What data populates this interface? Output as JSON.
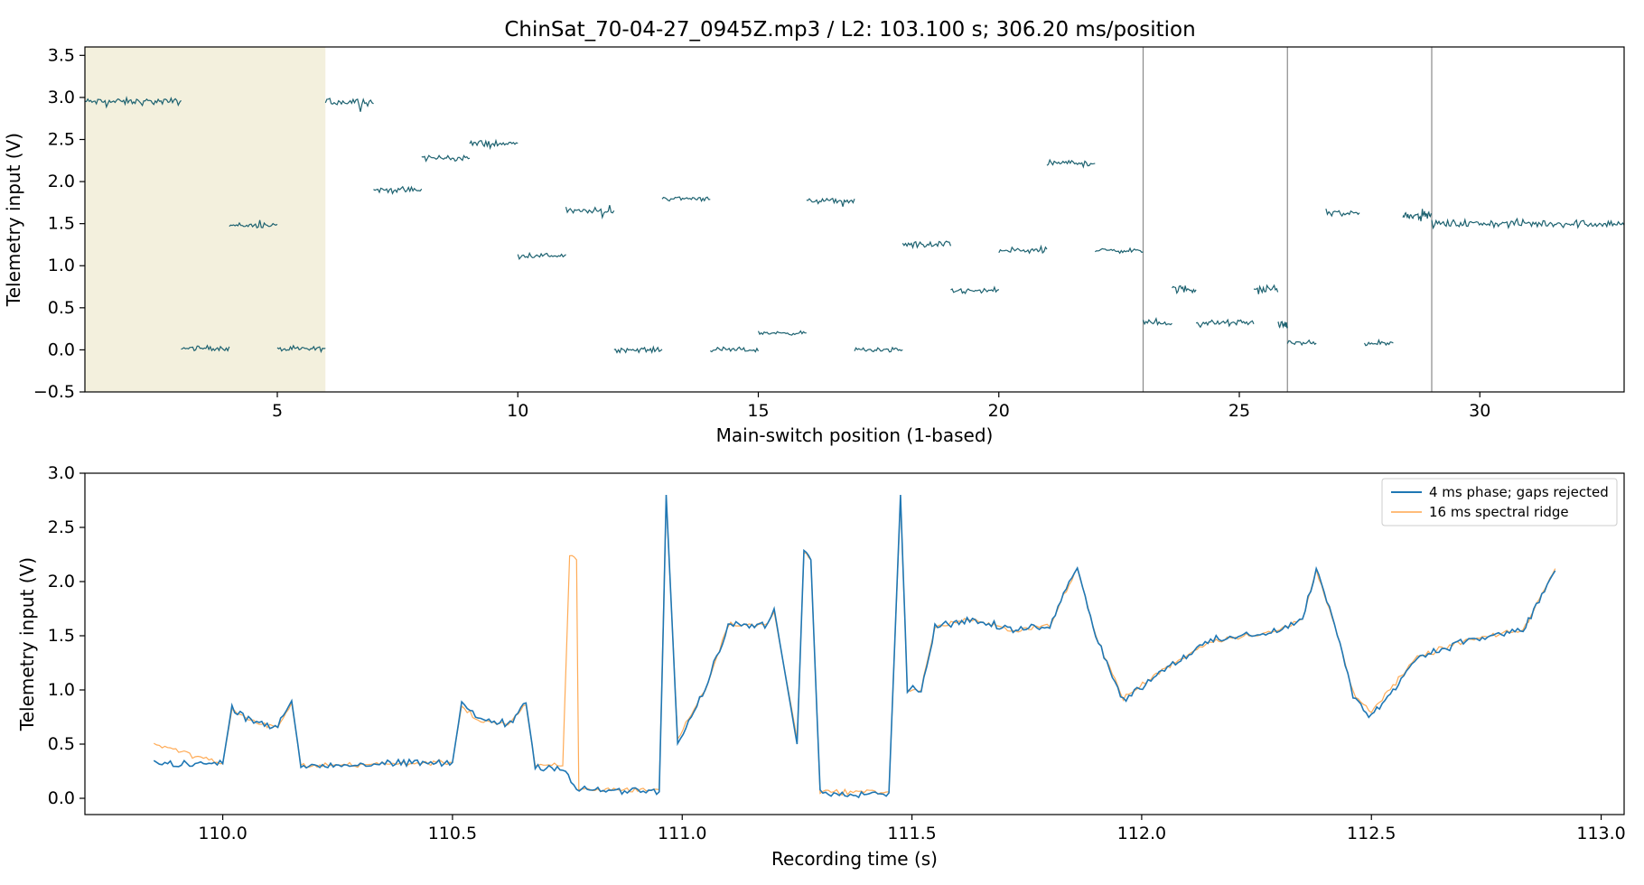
{
  "chart_data": [
    {
      "type": "line",
      "title": "ChinSat_70-04-27_0945Z.mp3 / L2: 103.100 s; 306.20 ms/position",
      "xlabel": "Main-switch position (1-based)",
      "ylabel": "Telemetry input (V)",
      "xlim": [
        1,
        33
      ],
      "ylim": [
        -0.5,
        3.6
      ],
      "xticks": [
        5,
        10,
        15,
        20,
        25,
        30
      ],
      "yticks": [
        -0.5,
        0.0,
        0.5,
        1.0,
        1.5,
        2.0,
        2.5,
        3.0,
        3.5
      ],
      "grid": false,
      "line_color": "#1d6270",
      "highlight": {
        "x0": 1,
        "x1": 6,
        "color": "#f3f0dd"
      },
      "vlines": [
        23,
        26,
        29
      ],
      "vline_color": "#8a8a8a",
      "series": [
        {
          "segments": [
            {
              "x0": 1.0,
              "x1": 3.0,
              "y": 2.95,
              "noise": 0.035
            },
            {
              "x0": 3.0,
              "x1": 4.0,
              "y": 0.02,
              "noise": 0.025
            },
            {
              "x0": 4.0,
              "x1": 5.0,
              "y": 1.48,
              "noise": 0.025
            },
            {
              "x0": 5.0,
              "x1": 6.0,
              "y": 0.01,
              "noise": 0.025
            },
            {
              "x0": 6.0,
              "x1": 7.0,
              "y": 2.95,
              "noise": 0.04
            },
            {
              "x0": 7.0,
              "x1": 8.0,
              "y": 1.9,
              "noise": 0.035
            },
            {
              "x0": 8.0,
              "x1": 9.0,
              "y": 2.28,
              "noise": 0.035
            },
            {
              "x0": 9.0,
              "x1": 10.0,
              "y": 2.45,
              "noise": 0.035
            },
            {
              "x0": 10.0,
              "x1": 11.0,
              "y": 1.12,
              "noise": 0.025
            },
            {
              "x0": 11.0,
              "x1": 12.0,
              "y": 1.65,
              "noise": 0.03
            },
            {
              "x0": 12.0,
              "x1": 13.0,
              "y": 0.0,
              "noise": 0.025
            },
            {
              "x0": 13.0,
              "x1": 14.0,
              "y": 1.8,
              "noise": 0.025
            },
            {
              "x0": 14.0,
              "x1": 15.0,
              "y": 0.0,
              "noise": 0.025
            },
            {
              "x0": 15.0,
              "x1": 16.0,
              "y": 0.2,
              "noise": 0.02
            },
            {
              "x0": 16.0,
              "x1": 17.0,
              "y": 1.77,
              "noise": 0.025
            },
            {
              "x0": 17.0,
              "x1": 18.0,
              "y": 0.0,
              "noise": 0.025
            },
            {
              "x0": 18.0,
              "x1": 19.0,
              "y": 1.25,
              "noise": 0.035
            },
            {
              "x0": 19.0,
              "x1": 20.0,
              "y": 0.7,
              "noise": 0.03
            },
            {
              "x0": 20.0,
              "x1": 21.0,
              "y": 1.18,
              "noise": 0.035
            },
            {
              "x0": 21.0,
              "x1": 22.0,
              "y": 2.22,
              "noise": 0.035
            },
            {
              "x0": 22.0,
              "x1": 23.0,
              "y": 1.18,
              "noise": 0.025
            },
            {
              "x0": 23.0,
              "x1": 23.6,
              "y": 0.32,
              "noise": 0.03
            },
            {
              "x0": 23.6,
              "x1": 24.1,
              "y": 0.72,
              "noise": 0.04
            },
            {
              "x0": 24.1,
              "x1": 25.3,
              "y": 0.32,
              "noise": 0.03
            },
            {
              "x0": 25.3,
              "x1": 25.8,
              "y": 0.72,
              "noise": 0.04
            },
            {
              "x0": 25.8,
              "x1": 26.0,
              "y": 0.3,
              "noise": 0.03
            },
            {
              "x0": 26.0,
              "x1": 26.6,
              "y": 0.08,
              "noise": 0.025
            },
            {
              "x0": 26.8,
              "x1": 27.5,
              "y": 1.62,
              "noise": 0.04
            },
            {
              "x0": 27.6,
              "x1": 28.2,
              "y": 0.08,
              "noise": 0.025
            },
            {
              "x0": 28.4,
              "x1": 28.7,
              "y": 1.6,
              "noise": 0.035
            },
            {
              "x0": 28.7,
              "x1": 29.0,
              "y": 1.6,
              "noise": 0.035
            },
            {
              "x0": 29.0,
              "x1": 33.0,
              "y": 1.5,
              "noise": 0.04
            }
          ]
        }
      ]
    },
    {
      "type": "line",
      "title": "",
      "xlabel": "Recording time (s)",
      "ylabel": "Telemetry input (V)",
      "xlim": [
        109.7,
        113.05
      ],
      "ylim": [
        -0.15,
        3.0
      ],
      "xticks": [
        110.0,
        110.5,
        111.0,
        111.5,
        112.0,
        112.5,
        113.0
      ],
      "xtick_labels": [
        "110.0",
        "110.5",
        "111.0",
        "111.5",
        "112.0",
        "112.5",
        "113.0"
      ],
      "yticks": [
        0.0,
        0.5,
        1.0,
        1.5,
        2.0,
        2.5,
        3.0
      ],
      "ytick_labels": [
        "0.0",
        "0.5",
        "1.0",
        "1.5",
        "2.0",
        "2.5",
        "3.0"
      ],
      "grid": false,
      "legend_position": "top-right",
      "series": [
        {
          "name": "4 ms phase; gaps rejected",
          "color": "#1f77b4",
          "points": [
            [
              109.85,
              0.32
            ],
            [
              110.0,
              0.32
            ],
            [
              110.02,
              0.85
            ],
            [
              110.05,
              0.75
            ],
            [
              110.12,
              0.65
            ],
            [
              110.15,
              0.9
            ],
            [
              110.17,
              0.3
            ],
            [
              110.5,
              0.33
            ],
            [
              110.52,
              0.88
            ],
            [
              110.55,
              0.75
            ],
            [
              110.62,
              0.68
            ],
            [
              110.66,
              0.88
            ],
            [
              110.68,
              0.3
            ],
            [
              110.74,
              0.28
            ],
            [
              110.77,
              0.08
            ],
            [
              110.95,
              0.06
            ],
            [
              110.96,
              1.8
            ],
            [
              110.965,
              2.8
            ],
            [
              110.975,
              1.9
            ],
            [
              110.99,
              0.5
            ],
            [
              111.05,
              1.0
            ],
            [
              111.1,
              1.6
            ],
            [
              111.18,
              1.6
            ],
            [
              111.2,
              1.75
            ],
            [
              111.25,
              0.5
            ],
            [
              111.265,
              2.3
            ],
            [
              111.28,
              2.2
            ],
            [
              111.3,
              0.05
            ],
            [
              111.45,
              0.05
            ],
            [
              111.475,
              2.8
            ],
            [
              111.49,
              1.0
            ],
            [
              111.52,
              1.0
            ],
            [
              111.55,
              1.58
            ],
            [
              111.62,
              1.65
            ],
            [
              111.72,
              1.55
            ],
            [
              111.8,
              1.6
            ],
            [
              111.86,
              2.15
            ],
            [
              111.9,
              1.5
            ],
            [
              111.96,
              0.9
            ],
            [
              112.05,
              1.2
            ],
            [
              112.15,
              1.45
            ],
            [
              112.3,
              1.55
            ],
            [
              112.35,
              1.65
            ],
            [
              112.38,
              2.12
            ],
            [
              112.42,
              1.6
            ],
            [
              112.46,
              0.95
            ],
            [
              112.5,
              0.75
            ],
            [
              112.6,
              1.3
            ],
            [
              112.7,
              1.45
            ],
            [
              112.83,
              1.55
            ],
            [
              112.9,
              2.1
            ]
          ]
        },
        {
          "name": "16 ms spectral ridge",
          "color": "#ffa64d",
          "points": [
            [
              109.85,
              0.5
            ],
            [
              110.0,
              0.32
            ],
            [
              110.02,
              0.82
            ],
            [
              110.05,
              0.73
            ],
            [
              110.12,
              0.65
            ],
            [
              110.15,
              0.88
            ],
            [
              110.17,
              0.3
            ],
            [
              110.5,
              0.33
            ],
            [
              110.52,
              0.86
            ],
            [
              110.55,
              0.73
            ],
            [
              110.62,
              0.68
            ],
            [
              110.66,
              0.86
            ],
            [
              110.68,
              0.3
            ],
            [
              110.74,
              0.3
            ],
            [
              110.755,
              2.25
            ],
            [
              110.77,
              2.2
            ],
            [
              110.775,
              0.08
            ],
            [
              110.95,
              0.08
            ],
            [
              110.965,
              2.75
            ],
            [
              110.975,
              1.9
            ],
            [
              110.99,
              0.55
            ],
            [
              111.05,
              1.0
            ],
            [
              111.1,
              1.6
            ],
            [
              111.18,
              1.6
            ],
            [
              111.2,
              1.72
            ],
            [
              111.25,
              0.55
            ],
            [
              111.265,
              2.28
            ],
            [
              111.28,
              2.2
            ],
            [
              111.3,
              0.06
            ],
            [
              111.45,
              0.06
            ],
            [
              111.475,
              2.75
            ],
            [
              111.49,
              1.0
            ],
            [
              111.52,
              1.0
            ],
            [
              111.55,
              1.58
            ],
            [
              111.62,
              1.65
            ],
            [
              111.72,
              1.55
            ],
            [
              111.8,
              1.6
            ],
            [
              111.86,
              2.12
            ],
            [
              111.9,
              1.5
            ],
            [
              111.96,
              0.92
            ],
            [
              112.05,
              1.2
            ],
            [
              112.15,
              1.45
            ],
            [
              112.3,
              1.55
            ],
            [
              112.35,
              1.65
            ],
            [
              112.38,
              2.1
            ],
            [
              112.42,
              1.6
            ],
            [
              112.46,
              0.98
            ],
            [
              112.5,
              0.8
            ],
            [
              112.6,
              1.3
            ],
            [
              112.7,
              1.45
            ],
            [
              112.83,
              1.55
            ],
            [
              112.9,
              2.12
            ]
          ]
        }
      ]
    }
  ]
}
